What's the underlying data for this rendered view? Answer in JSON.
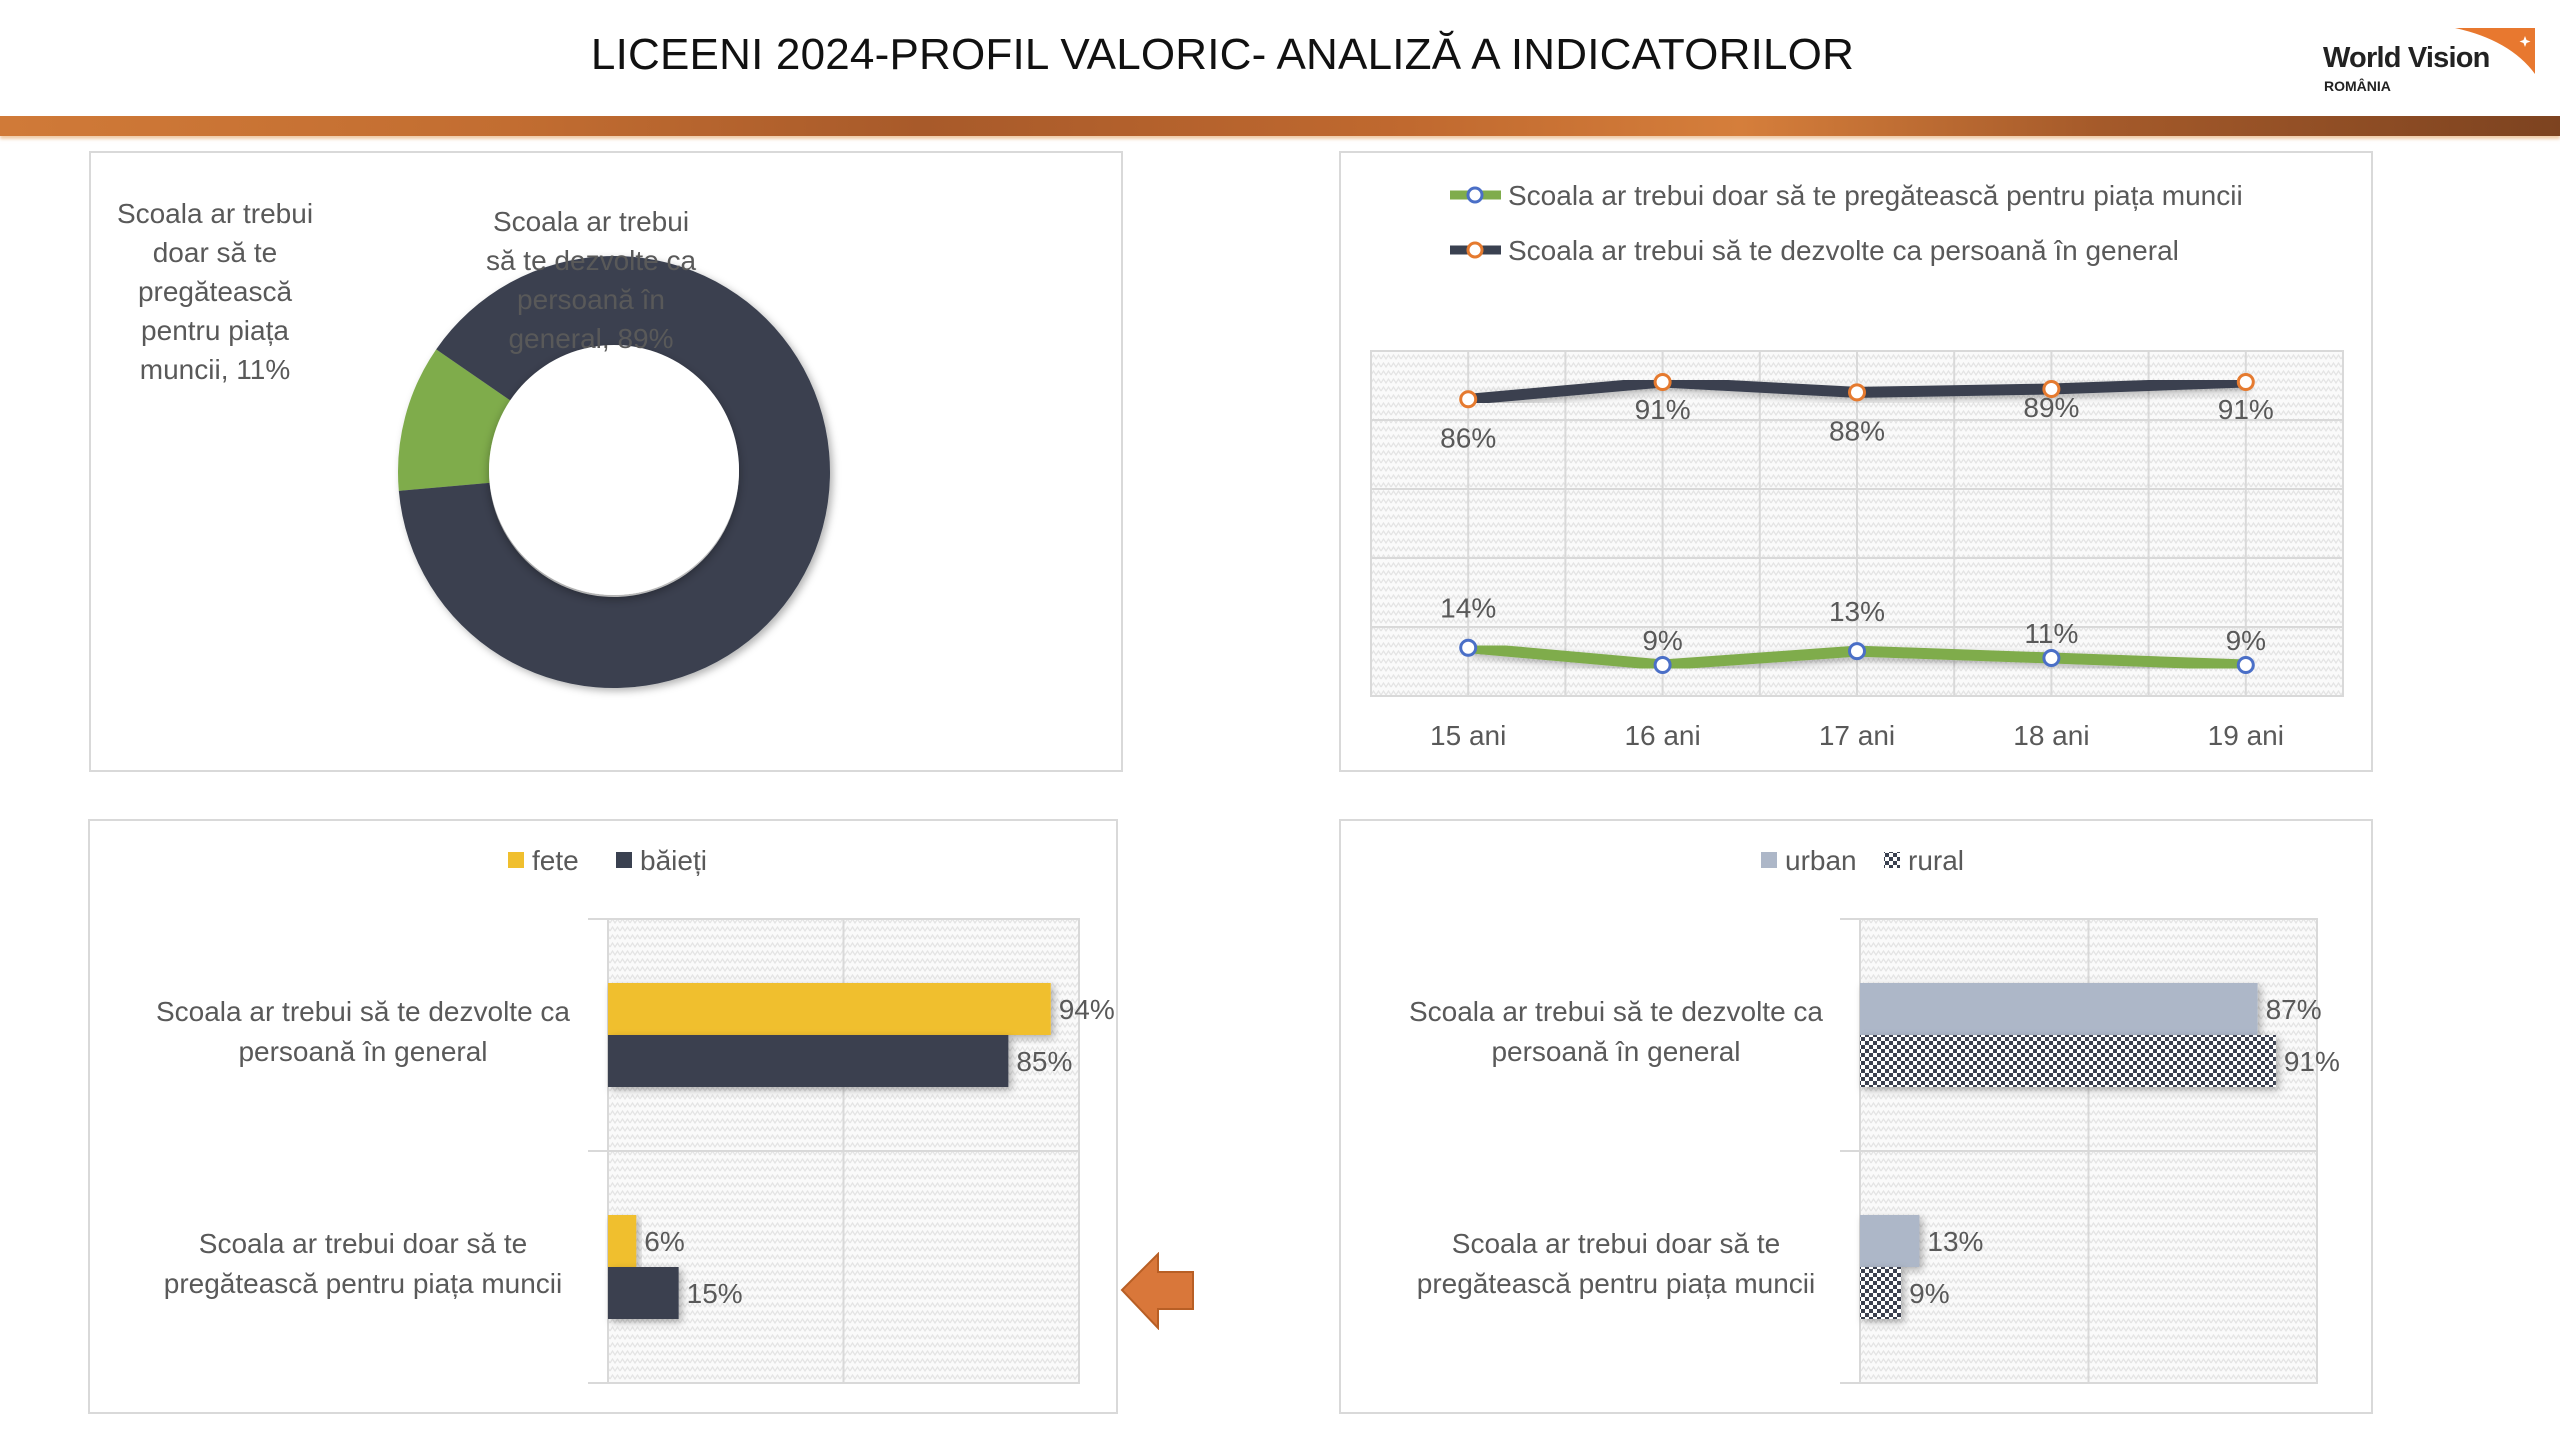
{
  "header": {
    "title": "LICEENI 2024-PROFIL  VALORIC- ANALIZĂ A INDICATORILOR",
    "logo_name": "World Vision",
    "logo_country": "ROMÂNIA",
    "band_color": "#c26d31"
  },
  "colors": {
    "green": "#7fac4c",
    "navy": "#3a4150",
    "yellow": "#f0bf2e",
    "slate": "#adb7c8",
    "marker_blue": "#4a6fc7",
    "marker_orange": "#e57a2f",
    "arrow": "#d9773a",
    "text": "#595959"
  },
  "chart_data": [
    {
      "type": "pie",
      "variant": "donut",
      "title": "",
      "labels": [
        "Scoala ar trebui doar să te pregătească pentru piața muncii",
        "Scoala ar trebui să te dezvolte ca persoană în general"
      ],
      "values": [
        11,
        89
      ],
      "data_labels": [
        [
          "Scoala ar trebui",
          "doar să te",
          "pregătească",
          "pentru piața",
          "muncii, 11%"
        ],
        [
          "Scoala ar trebui",
          "să te dezvolte ca",
          "persoană în",
          "general, 89%"
        ]
      ]
    },
    {
      "type": "line",
      "title": "",
      "categories": [
        "15 ani",
        "16 ani",
        "17 ani",
        "18 ani",
        "19 ani"
      ],
      "series": [
        {
          "name": "Scoala ar trebui  doar să te pregătească pentru piața muncii",
          "values": [
            14,
            9,
            13,
            11,
            9
          ],
          "labels": [
            "14%",
            "9%",
            "13%",
            "11%",
            "9%"
          ]
        },
        {
          "name": "Scoala ar trebui să te dezvolte ca persoană în general",
          "values": [
            86,
            91,
            88,
            89,
            91
          ],
          "labels": [
            "86%",
            "91%",
            "88%",
            "89%",
            "91%"
          ]
        }
      ],
      "ylim": [
        0,
        100
      ],
      "grid": true,
      "legend": "top"
    },
    {
      "type": "bar",
      "orientation": "horizontal",
      "title": "",
      "categories": [
        "Scoala ar trebui să te dezvolte ca persoană în general",
        "Scoala ar trebui doar să te pregătească pentru piața muncii"
      ],
      "category_lines": [
        [
          "Scoala ar trebui să te dezvolte ca",
          "persoană în general"
        ],
        [
          "Scoala ar trebui doar să te",
          "pregătească pentru piața muncii"
        ]
      ],
      "series": [
        {
          "name": "fete",
          "values": [
            94,
            6
          ],
          "labels": [
            "94%",
            "6%"
          ]
        },
        {
          "name": "băieți",
          "values": [
            85,
            15
          ],
          "labels": [
            "85%",
            "15%"
          ]
        }
      ],
      "xlim": [
        0,
        100
      ],
      "grid": true,
      "legend": "top"
    },
    {
      "type": "bar",
      "orientation": "horizontal",
      "title": "",
      "categories": [
        "Scoala ar trebui să te dezvolte ca persoană în general",
        "Scoala ar trebui doar să te pregătească pentru piața muncii"
      ],
      "category_lines": [
        [
          "Scoala ar trebui să te dezvolte ca",
          "persoană în general"
        ],
        [
          "Scoala ar trebui doar să te",
          "pregătească pentru piața muncii"
        ]
      ],
      "series": [
        {
          "name": "urban",
          "values": [
            87,
            13
          ],
          "labels": [
            "87%",
            "13%"
          ]
        },
        {
          "name": "rural",
          "values": [
            91,
            9
          ],
          "labels": [
            "91%",
            "9%"
          ]
        }
      ],
      "xlim": [
        0,
        100
      ],
      "grid": true,
      "legend": "top"
    }
  ]
}
